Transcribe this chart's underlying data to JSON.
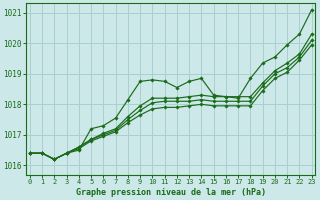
{
  "title": "Graphe pression niveau de la mer (hPa)",
  "bg_color": "#cce8e8",
  "grid_color": "#aacfcf",
  "line_color": "#1a6b1a",
  "xlim": [
    -0.3,
    23.3
  ],
  "ylim": [
    1015.7,
    1021.3
  ],
  "yticks": [
    1016,
    1017,
    1018,
    1019,
    1020,
    1021
  ],
  "xticks": [
    0,
    1,
    2,
    3,
    4,
    5,
    6,
    7,
    8,
    9,
    10,
    11,
    12,
    13,
    14,
    15,
    16,
    17,
    18,
    19,
    20,
    21,
    22,
    23
  ],
  "series": [
    [
      1016.4,
      1016.4,
      1016.2,
      1016.4,
      1016.5,
      1017.2,
      1017.3,
      1017.55,
      1018.15,
      1018.75,
      1018.8,
      1018.75,
      1018.55,
      1018.75,
      1018.85,
      1018.3,
      1018.25,
      1018.2,
      1018.85,
      1019.35,
      1019.55,
      1019.95,
      1020.3,
      1021.1
    ],
    [
      1016.4,
      1016.4,
      1016.2,
      1016.4,
      1016.6,
      1016.85,
      1017.05,
      1017.2,
      1017.6,
      1017.95,
      1018.2,
      1018.2,
      1018.2,
      1018.25,
      1018.3,
      1018.25,
      1018.25,
      1018.25,
      1018.25,
      1018.7,
      1019.1,
      1019.35,
      1019.65,
      1020.3
    ],
    [
      1016.4,
      1016.4,
      1016.2,
      1016.4,
      1016.6,
      1016.85,
      1017.0,
      1017.15,
      1017.5,
      1017.8,
      1018.05,
      1018.1,
      1018.1,
      1018.1,
      1018.15,
      1018.1,
      1018.1,
      1018.1,
      1018.1,
      1018.6,
      1019.0,
      1019.2,
      1019.55,
      1020.1
    ],
    [
      1016.4,
      1016.4,
      1016.2,
      1016.4,
      1016.55,
      1016.8,
      1016.95,
      1017.1,
      1017.4,
      1017.65,
      1017.85,
      1017.9,
      1017.9,
      1017.95,
      1018.0,
      1017.95,
      1017.95,
      1017.95,
      1017.95,
      1018.45,
      1018.85,
      1019.05,
      1019.45,
      1019.95
    ]
  ]
}
